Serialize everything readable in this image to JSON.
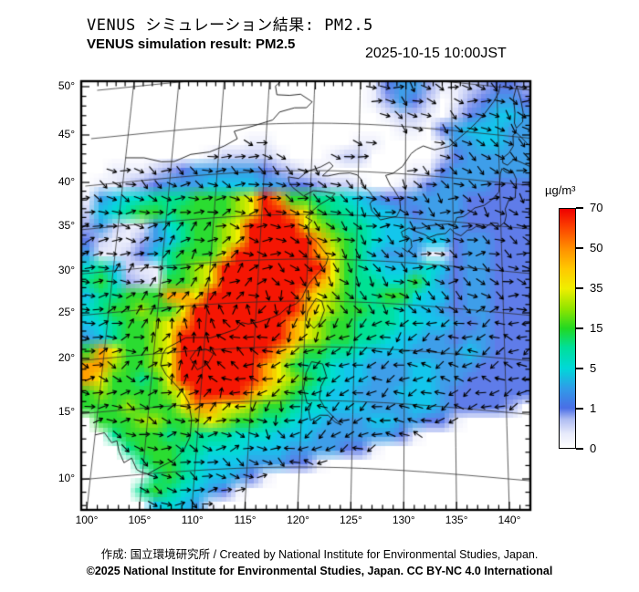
{
  "header": {
    "title_jp": "VENUS シミュレーション結果: PM2.5",
    "title_en": "VENUS simulation result: PM2.5",
    "timestamp": "2025-10-15 10:00JST"
  },
  "footer": {
    "credit_line": "作成: 国立環境研究所 / Created by National Institute for Environmental Studies, Japan.",
    "license_line": "©2025 National Institute for Environmental Studies, Japan. CC BY-NC 4.0 International"
  },
  "colorbar": {
    "unit": "µg/m³",
    "ticks": [
      "70",
      "50",
      "35",
      "15",
      "5",
      "1",
      "0"
    ],
    "gradient": [
      [
        0,
        "#ffffff"
      ],
      [
        0.06,
        "#e7eafb"
      ],
      [
        0.12,
        "#aebcf2"
      ],
      [
        0.167,
        "#4a6ee6"
      ],
      [
        0.25,
        "#2f9ce8"
      ],
      [
        0.333,
        "#00d8d8"
      ],
      [
        0.42,
        "#00df9a"
      ],
      [
        0.5,
        "#22d822"
      ],
      [
        0.58,
        "#8ee400"
      ],
      [
        0.667,
        "#f0ee00"
      ],
      [
        0.75,
        "#ffc800"
      ],
      [
        0.833,
        "#ff9000"
      ],
      [
        0.93,
        "#fb3c00"
      ],
      [
        1,
        "#ee0000"
      ]
    ]
  },
  "axes": {
    "lon_labels": [
      "100°",
      "105°",
      "110°",
      "115°",
      "120°",
      "125°",
      "130°",
      "135°",
      "140°"
    ],
    "lon_ticks": [
      100,
      105,
      110,
      115,
      120,
      125,
      130,
      135,
      140
    ],
    "lat_labels": [
      "50°",
      "45°",
      "40°",
      "35°",
      "30°",
      "25°",
      "20°",
      "15°",
      "10°"
    ],
    "lat_ticks": [
      50,
      45,
      40,
      35,
      30,
      25,
      20,
      15,
      10
    ]
  },
  "chart_data": {
    "type": "heatmap",
    "variable": "PM2.5",
    "units": "µg/m³",
    "title": "VENUS simulation result: PM2.5",
    "lon_range": [
      100,
      140
    ],
    "lat_range": [
      10,
      50
    ],
    "levels": [
      0,
      1,
      5,
      15,
      35,
      50,
      70
    ],
    "palette": {
      "0": "#ffffff",
      "1": "#eceefc",
      "2": "#c9d0f6",
      "3": "#9fadf1",
      "4": "#5f7ce9",
      "5": "#3e9ee9",
      "6": "#13c6ec",
      "7": "#00dfd0",
      "8": "#00e193",
      "9": "#2bdc31",
      "a": "#9ce404",
      "b": "#f2ee00",
      "c": "#ffa101",
      "d": "#f51603"
    },
    "grid_cols": 33,
    "grid_rows_count": 31,
    "grid_rows": [
      "000000000000000000000145531123443",
      "000000000000000000000135420134554",
      "000000000000000000000012210245665",
      "000000000000000000000001104566655",
      "000000000000110000001100001556655",
      "000000000122221000122000002455555",
      "001112345555543211000000114555555",
      "011234555666655443221001245555444",
      "15677888999abdc998876544555544444",
      "26789989999abddcb9887665455544444",
      "3521157899abddddba988766555544444",
      "4211356899abdddddca98766566455444",
      "5112468999bddddddcb98655511455444",
      "78621189abddddddddb98766676455444",
      "89732199abdddddddcb98877975455444",
      "688999ccbdddddddcba98899766455444",
      "7899a99bddddddddcba99887665455444",
      "67899abcdddddddcba998887766545444",
      "56899abddddddddcba998876655455444",
      "9cb99abdddddddcb99887666555565444",
      "cca99abddddddcb988766555665554444",
      "cb9989bddddddcba98766555665544444",
      "9a9999abddddcba987665556665444444",
      "999a999bccbba99877666555665444430",
      "0999aa99aba9988766555665544100000",
      "008999898887776665555554100000000",
      "000899988777666555544100000000000",
      "000089987666555441000000000000000",
      "000008987665410000000000000000000",
      "000089876541000000000000000000000",
      "000006765100000000000000000000000"
    ],
    "wind_overlay": {
      "style": "arrows",
      "color": "#000000",
      "spacing_px": 15
    }
  },
  "map": {
    "coastlines": {
      "china_coast": [
        [
          108.1,
          21.5
        ],
        [
          109.8,
          21.4
        ],
        [
          110.6,
          21.3
        ],
        [
          111.9,
          21.7
        ],
        [
          113.1,
          22.1
        ],
        [
          113.6,
          22.8
        ],
        [
          114.3,
          22.6
        ],
        [
          115.4,
          22.8
        ],
        [
          116.6,
          23.2
        ],
        [
          117.4,
          23.6
        ],
        [
          118.1,
          24.3
        ],
        [
          119.0,
          24.7
        ],
        [
          119.6,
          25.4
        ],
        [
          119.9,
          26.3
        ],
        [
          120.3,
          27.2
        ],
        [
          121.1,
          28.3
        ],
        [
          121.9,
          29.4
        ],
        [
          122.1,
          30.3
        ],
        [
          121.5,
          31.1
        ],
        [
          120.9,
          31.9
        ],
        [
          120.1,
          32.6
        ],
        [
          119.8,
          33.7
        ],
        [
          120.3,
          34.3
        ],
        [
          119.6,
          34.7
        ],
        [
          120.3,
          35.4
        ],
        [
          121.0,
          36.1
        ],
        [
          122.2,
          36.9
        ],
        [
          122.6,
          37.4
        ],
        [
          121.4,
          37.6
        ],
        [
          120.3,
          37.7
        ],
        [
          119.3,
          37.1
        ],
        [
          118.1,
          38.1
        ],
        [
          117.7,
          38.7
        ],
        [
          117.6,
          39.3
        ],
        [
          118.7,
          39.1
        ],
        [
          119.6,
          39.9
        ],
        [
          121.0,
          40.4
        ],
        [
          121.9,
          40.9
        ],
        [
          122.3,
          40.5
        ],
        [
          121.2,
          39.4
        ],
        [
          121.8,
          39.4
        ],
        [
          123.0,
          39.7
        ],
        [
          124.1,
          39.8
        ]
      ],
      "korea": [
        [
          124.1,
          39.8
        ],
        [
          124.9,
          39.6
        ],
        [
          125.4,
          39.0
        ],
        [
          125.3,
          38.6
        ],
        [
          126.2,
          37.8
        ],
        [
          126.7,
          37.0
        ],
        [
          126.3,
          36.4
        ],
        [
          126.5,
          35.6
        ],
        [
          127.4,
          34.6
        ],
        [
          128.4,
          34.9
        ],
        [
          129.1,
          35.1
        ],
        [
          129.5,
          36.0
        ],
        [
          129.4,
          37.1
        ],
        [
          128.7,
          38.3
        ],
        [
          128.4,
          38.6
        ],
        [
          127.9,
          39.7
        ],
        [
          128.7,
          40.0
        ],
        [
          129.7,
          40.8
        ],
        [
          130.6,
          42.2
        ]
      ],
      "primorye": [
        [
          130.6,
          42.2
        ],
        [
          131.2,
          42.7
        ],
        [
          131.9,
          43.1
        ],
        [
          133.1,
          42.8
        ],
        [
          134.7,
          43.3
        ],
        [
          135.9,
          44.4
        ],
        [
          136.8,
          45.2
        ],
        [
          137.7,
          46.1
        ],
        [
          138.6,
          47.1
        ],
        [
          139.6,
          48.4
        ],
        [
          140.2,
          49.4
        ],
        [
          140.4,
          50.3
        ]
      ],
      "japan_pacific": [
        [
          129.7,
          31.6
        ],
        [
          130.3,
          31.2
        ],
        [
          130.7,
          31.8
        ],
        [
          130.6,
          32.6
        ],
        [
          130.2,
          33.0
        ],
        [
          129.8,
          32.8
        ],
        [
          129.6,
          33.4
        ],
        [
          130.4,
          33.9
        ],
        [
          131.0,
          33.6
        ],
        [
          132.0,
          33.3
        ],
        [
          132.5,
          33.0
        ],
        [
          133.3,
          33.4
        ],
        [
          134.2,
          33.6
        ],
        [
          134.7,
          34.2
        ],
        [
          135.2,
          33.7
        ],
        [
          135.8,
          33.5
        ],
        [
          136.5,
          34.2
        ],
        [
          136.9,
          34.3
        ],
        [
          137.4,
          34.7
        ],
        [
          138.2,
          34.6
        ],
        [
          138.7,
          35.0
        ],
        [
          139.1,
          35.3
        ],
        [
          139.7,
          35.3
        ],
        [
          139.8,
          34.9
        ],
        [
          140.4,
          35.5
        ],
        [
          140.6,
          36.3
        ],
        [
          140.5,
          37.0
        ],
        [
          141.0,
          38.3
        ],
        [
          141.6,
          38.4
        ],
        [
          141.7,
          39.6
        ],
        [
          141.8,
          40.5
        ],
        [
          141.4,
          41.4
        ],
        [
          140.9,
          41.1
        ],
        [
          140.6,
          41.2
        ],
        [
          140.3,
          41.5
        ]
      ],
      "japan_west": [
        [
          130.9,
          33.9
        ],
        [
          131.7,
          34.0
        ],
        [
          132.4,
          34.3
        ],
        [
          133.4,
          34.5
        ],
        [
          134.5,
          34.7
        ],
        [
          135.1,
          34.6
        ],
        [
          135.4,
          35.5
        ],
        [
          136.1,
          35.7
        ],
        [
          136.8,
          36.3
        ],
        [
          137.3,
          36.8
        ],
        [
          138.3,
          37.2
        ],
        [
          139.1,
          37.9
        ],
        [
          139.9,
          38.9
        ],
        [
          140.0,
          39.9
        ],
        [
          140.1,
          40.9
        ],
        [
          140.3,
          41.5
        ]
      ],
      "hokkaido": [
        [
          140.4,
          42.1
        ],
        [
          140.9,
          41.9
        ],
        [
          141.6,
          42.6
        ],
        [
          142.5,
          42.3
        ],
        [
          143.3,
          42.0
        ],
        [
          144.4,
          42.9
        ],
        [
          145.3,
          43.3
        ],
        [
          145.5,
          44.1
        ],
        [
          144.8,
          43.9
        ],
        [
          144.0,
          44.1
        ],
        [
          143.2,
          44.3
        ],
        [
          142.5,
          45.0
        ],
        [
          141.9,
          45.5
        ],
        [
          141.6,
          45.1
        ],
        [
          141.6,
          44.0
        ],
        [
          141.1,
          43.2
        ],
        [
          140.4,
          42.6
        ],
        [
          140.4,
          42.1
        ]
      ],
      "sakhalin": [
        [
          142.0,
          45.9
        ],
        [
          142.7,
          46.6
        ],
        [
          142.8,
          47.6
        ],
        [
          142.6,
          48.9
        ],
        [
          142.2,
          50.3
        ],
        [
          141.8,
          49.0
        ],
        [
          141.9,
          47.5
        ],
        [
          141.8,
          46.4
        ],
        [
          142.0,
          45.9
        ]
      ],
      "taiwan": [
        [
          121.6,
          25.0
        ],
        [
          121.0,
          25.3
        ],
        [
          120.2,
          23.8
        ],
        [
          120.1,
          22.9
        ],
        [
          120.9,
          22.0
        ],
        [
          121.5,
          22.7
        ],
        [
          121.9,
          24.0
        ],
        [
          121.6,
          25.0
        ]
      ],
      "hainan": [
        [
          108.7,
          19.3
        ],
        [
          109.2,
          20.0
        ],
        [
          110.2,
          20.1
        ],
        [
          111.0,
          19.6
        ],
        [
          110.5,
          18.7
        ],
        [
          109.5,
          18.2
        ],
        [
          108.7,
          19.3
        ]
      ],
      "vietnam": [
        [
          108.1,
          21.5
        ],
        [
          107.0,
          20.9
        ],
        [
          106.2,
          20.5
        ],
        [
          105.9,
          19.9
        ],
        [
          105.8,
          18.9
        ],
        [
          106.4,
          18.0
        ],
        [
          107.4,
          17.0
        ],
        [
          108.3,
          16.1
        ],
        [
          108.9,
          15.2
        ],
        [
          109.3,
          13.9
        ],
        [
          109.3,
          12.6
        ],
        [
          108.8,
          11.6
        ],
        [
          107.9,
          10.9
        ],
        [
          106.8,
          10.5
        ],
        [
          105.5,
          10.0
        ],
        [
          104.8,
          10.2
        ],
        [
          104.4,
          10.4
        ],
        [
          103.8,
          11.3
        ],
        [
          103.1,
          11.0
        ],
        [
          102.5,
          11.9
        ],
        [
          102.2,
          12.7
        ],
        [
          101.7,
          12.6
        ],
        [
          100.9,
          13.4
        ],
        [
          100.0,
          13.3
        ]
      ],
      "luzon": [
        [
          120.1,
          16.1
        ],
        [
          120.3,
          17.6
        ],
        [
          120.8,
          18.6
        ],
        [
          121.9,
          18.4
        ],
        [
          122.3,
          17.3
        ],
        [
          121.8,
          16.3
        ],
        [
          121.7,
          15.2
        ],
        [
          122.3,
          14.4
        ],
        [
          123.1,
          13.8
        ],
        [
          123.9,
          13.2
        ],
        [
          123.3,
          13.4
        ],
        [
          122.6,
          13.9
        ],
        [
          121.8,
          13.9
        ],
        [
          120.9,
          13.5
        ],
        [
          120.7,
          14.2
        ],
        [
          120.9,
          14.7
        ],
        [
          120.5,
          14.8
        ],
        [
          120.1,
          16.1
        ]
      ],
      "mongolia_border": [
        [
          100.0,
          42.6
        ],
        [
          102.0,
          42.4
        ],
        [
          103.9,
          41.8
        ],
        [
          105.3,
          41.7
        ],
        [
          107.0,
          42.3
        ],
        [
          109.0,
          42.4
        ],
        [
          110.5,
          42.9
        ],
        [
          111.9,
          43.6
        ],
        [
          111.5,
          44.4
        ],
        [
          113.7,
          44.9
        ],
        [
          115.6,
          45.4
        ],
        [
          116.3,
          46.2
        ],
        [
          117.9,
          46.6
        ],
        [
          119.2,
          46.6
        ],
        [
          119.8,
          47.2
        ],
        [
          118.5,
          48.0
        ],
        [
          117.3,
          47.9
        ],
        [
          115.9,
          48.0
        ],
        [
          115.7,
          48.9
        ],
        [
          116.8,
          49.8
        ]
      ]
    }
  }
}
